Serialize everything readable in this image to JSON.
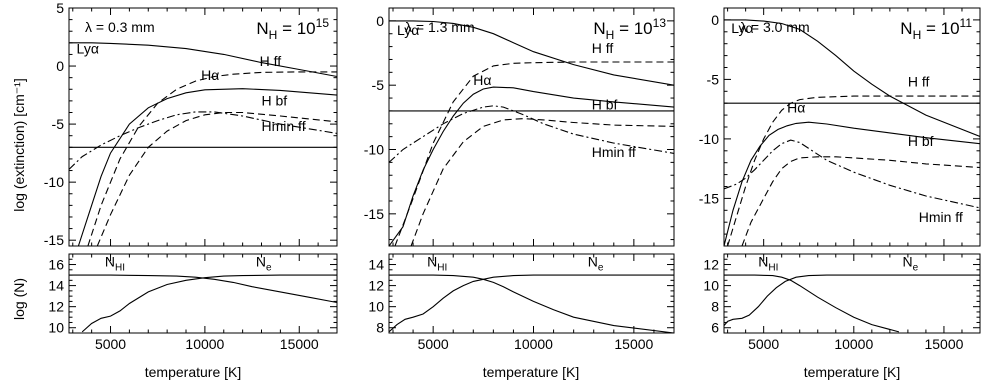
{
  "figure": {
    "ylabel_top": "log (extinction)  [cm⁻¹]",
    "ylabel_bottom": "log (N)",
    "xlabel": "temperature  [K]"
  },
  "chart_data": [
    {
      "type": "line",
      "panel": "top",
      "lambda_label": "λ = 0.3 mm",
      "nh_base": "N",
      "nh_sub": "H",
      "nh_eq": " = 10",
      "nh_exp": "15",
      "xlim": [
        2800,
        17000
      ],
      "ylim": [
        -15.5,
        5
      ],
      "xticks": [
        5000,
        10000,
        15000
      ],
      "yticks": [
        5,
        0,
        -5,
        -10,
        -15
      ],
      "series": [
        {
          "name": "Lyα",
          "style": "solid",
          "label_at": [
            3200,
            1.1
          ],
          "x": [
            2800,
            4000,
            5000,
            7000,
            9000,
            11000,
            13000,
            15000,
            17000
          ],
          "y": [
            2.0,
            2.0,
            1.95,
            1.8,
            1.5,
            1.0,
            0.3,
            -0.3,
            -0.9
          ]
        },
        {
          "name": "Hα",
          "style": "solid",
          "label_at": [
            9800,
            -1.2
          ],
          "x": [
            3300,
            4000,
            4500,
            5000,
            6000,
            7000,
            8000,
            9000,
            10000,
            12000,
            14000,
            17000
          ],
          "y": [
            -15.5,
            -12.0,
            -9.5,
            -7.5,
            -5.0,
            -3.6,
            -2.8,
            -2.3,
            -2.05,
            -1.95,
            -2.1,
            -2.5
          ]
        },
        {
          "name": "H ff",
          "style": "dashed",
          "label_at": [
            12900,
            0.0
          ],
          "x": [
            3800,
            4500,
            5500,
            6500,
            7500,
            8500,
            9500,
            10500,
            11500,
            13000,
            15000,
            17000
          ],
          "y": [
            -15.5,
            -12.0,
            -8.0,
            -5.2,
            -3.2,
            -2.0,
            -1.3,
            -0.9,
            -0.7,
            -0.55,
            -0.5,
            -0.5
          ]
        },
        {
          "name": "H bf",
          "style": "dashed",
          "label_at": [
            13000,
            -3.4
          ],
          "x": [
            4300,
            5000,
            6000,
            7000,
            8000,
            9000,
            10000,
            11000,
            12000,
            14000,
            17000
          ],
          "y": [
            -15.5,
            -12.8,
            -9.4,
            -7.0,
            -5.6,
            -4.7,
            -4.2,
            -4.0,
            -4.0,
            -4.3,
            -4.8
          ]
        },
        {
          "name": "Hmin ff",
          "style": "dashdot",
          "label_at": [
            13000,
            -5.6
          ],
          "x": [
            2800,
            3500,
            4500,
            5500,
            6500,
            7500,
            8500,
            9500,
            10500,
            12000,
            14000,
            17000
          ],
          "y": [
            -8.9,
            -7.8,
            -6.8,
            -6.0,
            -5.3,
            -4.7,
            -4.2,
            -3.95,
            -3.95,
            -4.3,
            -5.0,
            -5.8
          ]
        },
        {
          "name": "",
          "style": "solid",
          "x": [
            2800,
            17000
          ],
          "y": [
            -7.0,
            -7.0
          ]
        }
      ]
    },
    {
      "type": "line",
      "panel": "top",
      "lambda_label": "λ = 1.3 mm",
      "nh_base": "N",
      "nh_sub": "H",
      "nh_eq": " = 10",
      "nh_exp": "13",
      "xlim": [
        2800,
        17000
      ],
      "ylim": [
        -17.5,
        1
      ],
      "xticks": [
        5000,
        10000,
        15000
      ],
      "yticks": [
        0,
        -5,
        -10,
        -15
      ],
      "series": [
        {
          "name": "Lyα",
          "style": "solid",
          "label_at": [
            3200,
            -1.1
          ],
          "x": [
            2800,
            4000,
            5000,
            6000,
            7000,
            8000,
            9000,
            10000,
            12000,
            14000,
            17000
          ],
          "y": [
            0.0,
            0.0,
            -0.05,
            -0.2,
            -0.5,
            -1.0,
            -1.7,
            -2.4,
            -3.4,
            -4.2,
            -5.0
          ]
        },
        {
          "name": "Hα",
          "style": "solid",
          "label_at": [
            7000,
            -5.0
          ],
          "x": [
            2800,
            3500,
            4000,
            4500,
            5000,
            5500,
            6000,
            6500,
            7000,
            7500,
            8000,
            9000,
            10000,
            12000,
            14000,
            17000
          ],
          "y": [
            -17.5,
            -16.0,
            -13.6,
            -11.6,
            -10.0,
            -8.6,
            -7.4,
            -6.4,
            -5.7,
            -5.3,
            -5.15,
            -5.2,
            -5.5,
            -6.0,
            -6.3,
            -6.7
          ]
        },
        {
          "name": "H ff",
          "style": "dashed",
          "label_at": [
            12900,
            -2.5
          ],
          "x": [
            3100,
            4000,
            5000,
            6000,
            7000,
            8000,
            9000,
            10000,
            12000,
            14000,
            17000
          ],
          "y": [
            -17.5,
            -13.8,
            -9.5,
            -6.3,
            -4.3,
            -3.5,
            -3.3,
            -3.25,
            -3.2,
            -3.2,
            -3.2
          ]
        },
        {
          "name": "H bf",
          "style": "dashed",
          "label_at": [
            12900,
            -6.9
          ],
          "x": [
            3900,
            4500,
            5500,
            6500,
            7500,
            8500,
            9500,
            10500,
            12000,
            14000,
            17000
          ],
          "y": [
            -17.5,
            -15.0,
            -11.5,
            -9.4,
            -8.2,
            -7.7,
            -7.6,
            -7.7,
            -7.9,
            -8.1,
            -8.2
          ]
        },
        {
          "name": "Hmin ff",
          "style": "dashdot",
          "label_at": [
            12900,
            -10.6
          ],
          "x": [
            2800,
            3500,
            4500,
            5500,
            6500,
            7500,
            8000,
            8500,
            9500,
            10500,
            12000,
            14000,
            17000
          ],
          "y": [
            -11.0,
            -10.0,
            -9.0,
            -8.0,
            -7.2,
            -6.7,
            -6.6,
            -6.7,
            -7.3,
            -8.0,
            -8.8,
            -9.5,
            -10.3
          ]
        },
        {
          "name": "",
          "style": "solid",
          "x": [
            2800,
            17000
          ],
          "y": [
            -7.0,
            -7.0
          ]
        }
      ]
    },
    {
      "type": "line",
      "panel": "top",
      "lambda_label": "λ = 3.0 mm",
      "nh_base": "N",
      "nh_sub": "H",
      "nh_eq": " = 10",
      "nh_exp": "11",
      "xlim": [
        2800,
        17000
      ],
      "ylim": [
        -19,
        1
      ],
      "xticks": [
        5000,
        10000,
        15000
      ],
      "yticks": [
        0,
        -5,
        -10,
        -15
      ],
      "series": [
        {
          "name": "Lyα",
          "style": "solid",
          "label_at": [
            3200,
            -1.1
          ],
          "x": [
            2800,
            4000,
            5000,
            6000,
            7000,
            8000,
            9000,
            10000,
            11000,
            12000,
            14000,
            17000
          ],
          "y": [
            0.0,
            0.0,
            -0.1,
            -0.3,
            -0.8,
            -1.8,
            -3.0,
            -4.3,
            -5.4,
            -6.4,
            -8.0,
            -9.8
          ]
        },
        {
          "name": "Hα",
          "style": "solid",
          "label_at": [
            6300,
            -7.8
          ],
          "x": [
            2800,
            3300,
            3800,
            4300,
            4800,
            5300,
            5800,
            6300,
            6800,
            7500,
            8500,
            10000,
            12000,
            14000,
            17000
          ],
          "y": [
            -19.0,
            -16.0,
            -13.6,
            -11.8,
            -10.6,
            -9.7,
            -9.2,
            -8.9,
            -8.7,
            -8.6,
            -8.75,
            -9.1,
            -9.5,
            -9.9,
            -10.4
          ]
        },
        {
          "name": "H ff",
          "style": "dashed",
          "label_at": [
            13000,
            -5.6
          ],
          "x": [
            3000,
            3500,
            4000,
            4500,
            5000,
            5500,
            6000,
            6500,
            7000,
            8000,
            9000,
            10000,
            12000,
            14000,
            17000
          ],
          "y": [
            -19.0,
            -16.5,
            -14.0,
            -11.8,
            -10.0,
            -8.6,
            -7.6,
            -7.0,
            -6.7,
            -6.5,
            -6.45,
            -6.4,
            -6.4,
            -6.4,
            -6.4
          ]
        },
        {
          "name": "H bf",
          "style": "dashed",
          "label_at": [
            13000,
            -10.6
          ],
          "x": [
            3800,
            4300,
            5000,
            5500,
            6000,
            6500,
            7000,
            8000,
            9000,
            10000,
            12000,
            14000,
            17000
          ],
          "y": [
            -19.0,
            -17.0,
            -15.0,
            -13.6,
            -12.5,
            -11.9,
            -11.6,
            -11.5,
            -11.5,
            -11.6,
            -11.8,
            -12.1,
            -12.4
          ]
        },
        {
          "name": "Hmin ff",
          "style": "dashdot",
          "label_at": [
            13600,
            -17.0
          ],
          "x": [
            2800,
            3500,
            4000,
            4500,
            5000,
            5500,
            6000,
            6500,
            7000,
            7500,
            8500,
            10000,
            12000,
            14000,
            17000
          ],
          "y": [
            -14.2,
            -13.8,
            -13.3,
            -12.6,
            -11.8,
            -11.0,
            -10.4,
            -10.1,
            -10.3,
            -10.8,
            -11.8,
            -12.8,
            -13.9,
            -14.8,
            -15.8
          ]
        },
        {
          "name": "",
          "style": "solid",
          "x": [
            2800,
            17000
          ],
          "y": [
            -7.0,
            -7.0
          ]
        }
      ]
    },
    {
      "type": "line",
      "panel": "bottom",
      "xlim": [
        2800,
        17000
      ],
      "ylim": [
        9.5,
        17
      ],
      "xticks": [
        5000,
        10000,
        15000
      ],
      "xticklabels": [
        "5000",
        "10000",
        "15000"
      ],
      "yticks": [
        10,
        12,
        14,
        16
      ],
      "series": [
        {
          "name": "N",
          "sub": "HI",
          "style": "solid",
          "label_at": [
            4700,
            15.8
          ],
          "x": [
            2800,
            5000,
            7000,
            8500,
            9500,
            10500,
            11500,
            12500,
            14000,
            15500,
            17000
          ],
          "y": [
            15.0,
            15.0,
            14.95,
            14.9,
            14.8,
            14.6,
            14.3,
            13.9,
            13.4,
            12.9,
            12.4
          ]
        },
        {
          "name": "N",
          "sub": "e",
          "style": "solid",
          "label_at": [
            12700,
            15.8
          ],
          "x": [
            3500,
            4000,
            4500,
            5000,
            5500,
            6000,
            7000,
            8000,
            9000,
            10000,
            11000,
            12000,
            14000,
            17000
          ],
          "y": [
            9.6,
            10.4,
            10.9,
            11.1,
            11.6,
            12.3,
            13.4,
            14.1,
            14.5,
            14.75,
            14.9,
            14.95,
            15.0,
            15.0
          ]
        }
      ]
    },
    {
      "type": "line",
      "panel": "bottom",
      "xlim": [
        2800,
        17000
      ],
      "ylim": [
        7.5,
        15
      ],
      "xticks": [
        5000,
        10000,
        15000
      ],
      "xticklabels": [
        "5000",
        "10000",
        "15000"
      ],
      "yticks": [
        8,
        10,
        12,
        14
      ],
      "series": [
        {
          "name": "N",
          "sub": "HI",
          "style": "solid",
          "label_at": [
            4700,
            13.8
          ],
          "x": [
            2800,
            5000,
            6000,
            7000,
            7500,
            8000,
            8500,
            9000,
            10000,
            11000,
            12000,
            14000,
            17000
          ],
          "y": [
            13.0,
            13.0,
            12.95,
            12.8,
            12.6,
            12.3,
            11.9,
            11.4,
            10.5,
            9.7,
            9.0,
            8.2,
            7.5
          ]
        },
        {
          "name": "N",
          "sub": "e",
          "style": "solid",
          "label_at": [
            12700,
            13.8
          ],
          "x": [
            2800,
            3200,
            3600,
            4000,
            4500,
            5000,
            5500,
            6000,
            6500,
            7000,
            8000,
            9000,
            10000,
            12000,
            17000
          ],
          "y": [
            7.6,
            8.3,
            8.8,
            9.0,
            9.3,
            10.0,
            10.8,
            11.5,
            12.0,
            12.4,
            12.8,
            12.95,
            13.0,
            13.0,
            13.0
          ]
        }
      ]
    },
    {
      "type": "line",
      "panel": "bottom",
      "xlim": [
        2800,
        17000
      ],
      "ylim": [
        5.5,
        13
      ],
      "xticks": [
        5000,
        10000,
        15000
      ],
      "xticklabels": [
        "5000",
        "10000",
        "15000"
      ],
      "yticks": [
        6,
        8,
        10,
        12
      ],
      "series": [
        {
          "name": "N",
          "sub": "HI",
          "style": "solid",
          "label_at": [
            4700,
            11.8
          ],
          "x": [
            2800,
            4500,
            5500,
            6000,
            6500,
            7000,
            8000,
            9000,
            10000,
            11000,
            12500
          ],
          "y": [
            11.0,
            11.0,
            10.95,
            10.8,
            10.5,
            10.0,
            8.9,
            7.9,
            7.0,
            6.3,
            5.6
          ]
        },
        {
          "name": "N",
          "sub": "e",
          "style": "solid",
          "label_at": [
            12700,
            11.8
          ],
          "x": [
            2800,
            3000,
            3300,
            3800,
            4200,
            4700,
            5200,
            5700,
            6200,
            6800,
            7500,
            8500,
            10000,
            17000
          ],
          "y": [
            6.2,
            6.6,
            6.8,
            6.9,
            7.2,
            8.0,
            9.0,
            9.8,
            10.4,
            10.8,
            10.95,
            11.0,
            11.0,
            11.0
          ]
        }
      ]
    }
  ]
}
